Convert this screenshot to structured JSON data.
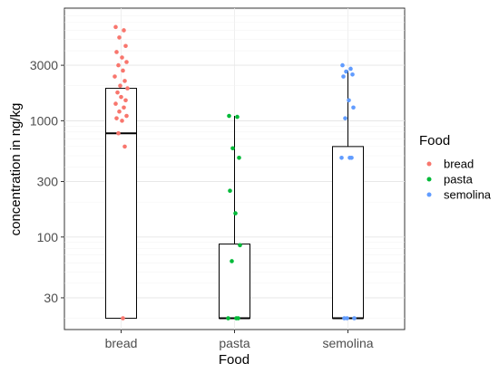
{
  "chart_data": {
    "type": "box",
    "xlabel": "Food",
    "ylabel": "concentration in ng/kg",
    "y_scale": "log10",
    "ylim": [
      16,
      9300
    ],
    "categories": [
      "bread",
      "pasta",
      "semolina"
    ],
    "y_ticks": [
      30,
      100,
      300,
      1000,
      3000
    ],
    "y_tick_labels": [
      "30",
      "100",
      "300",
      "1000",
      "3000"
    ],
    "grid": true,
    "legend": {
      "title": "Food",
      "position": "right",
      "entries": [
        {
          "name": "bread",
          "color": "#F8766D"
        },
        {
          "name": "pasta",
          "color": "#00BA38"
        },
        {
          "name": "semolina",
          "color": "#619CFF"
        }
      ]
    },
    "boxes": [
      {
        "category": "bread",
        "min": 20,
        "q1": 20,
        "median": 780,
        "q3": 1900,
        "max": 1900
      },
      {
        "category": "pasta",
        "min": 20,
        "q1": 20,
        "median": 20,
        "q3": 87,
        "max": 1100
      },
      {
        "category": "semolina",
        "min": 20,
        "q1": 20,
        "median": 20,
        "q3": 600,
        "max": 2700
      }
    ],
    "series": [
      {
        "name": "bread",
        "color": "#F8766D",
        "points": [
          {
            "x": "bread",
            "y": 6400
          },
          {
            "x": "bread",
            "y": 6000
          },
          {
            "x": "bread",
            "y": 5200
          },
          {
            "x": "bread",
            "y": 4400
          },
          {
            "x": "bread",
            "y": 3900
          },
          {
            "x": "bread",
            "y": 3500
          },
          {
            "x": "bread",
            "y": 3200
          },
          {
            "x": "bread",
            "y": 3000
          },
          {
            "x": "bread",
            "y": 2700
          },
          {
            "x": "bread",
            "y": 2400
          },
          {
            "x": "bread",
            "y": 2200
          },
          {
            "x": "bread",
            "y": 2000
          },
          {
            "x": "bread",
            "y": 1900
          },
          {
            "x": "bread",
            "y": 1750
          },
          {
            "x": "bread",
            "y": 1600
          },
          {
            "x": "bread",
            "y": 1500
          },
          {
            "x": "bread",
            "y": 1400
          },
          {
            "x": "bread",
            "y": 1300
          },
          {
            "x": "bread",
            "y": 1200
          },
          {
            "x": "bread",
            "y": 1100
          },
          {
            "x": "bread",
            "y": 1050
          },
          {
            "x": "bread",
            "y": 1000
          },
          {
            "x": "bread",
            "y": 780
          },
          {
            "x": "bread",
            "y": 600
          },
          {
            "x": "bread",
            "y": 20
          }
        ]
      },
      {
        "name": "pasta",
        "color": "#00BA38",
        "points": [
          {
            "x": "pasta",
            "y": 1100
          },
          {
            "x": "pasta",
            "y": 1080
          },
          {
            "x": "pasta",
            "y": 580
          },
          {
            "x": "pasta",
            "y": 480
          },
          {
            "x": "pasta",
            "y": 250
          },
          {
            "x": "pasta",
            "y": 160
          },
          {
            "x": "pasta",
            "y": 85
          },
          {
            "x": "pasta",
            "y": 62
          },
          {
            "x": "pasta",
            "y": 20
          },
          {
            "x": "pasta",
            "y": 20
          },
          {
            "x": "pasta",
            "y": 20
          }
        ]
      },
      {
        "name": "semolina",
        "color": "#619CFF",
        "points": [
          {
            "x": "semolina",
            "y": 3000
          },
          {
            "x": "semolina",
            "y": 2800
          },
          {
            "x": "semolina",
            "y": 2650
          },
          {
            "x": "semolina",
            "y": 2500
          },
          {
            "x": "semolina",
            "y": 2400
          },
          {
            "x": "semolina",
            "y": 1500
          },
          {
            "x": "semolina",
            "y": 1300
          },
          {
            "x": "semolina",
            "y": 1050
          },
          {
            "x": "semolina",
            "y": 480
          },
          {
            "x": "semolina",
            "y": 480
          },
          {
            "x": "semolina",
            "y": 480
          },
          {
            "x": "semolina",
            "y": 20
          },
          {
            "x": "semolina",
            "y": 20
          },
          {
            "x": "semolina",
            "y": 20
          }
        ]
      }
    ]
  }
}
